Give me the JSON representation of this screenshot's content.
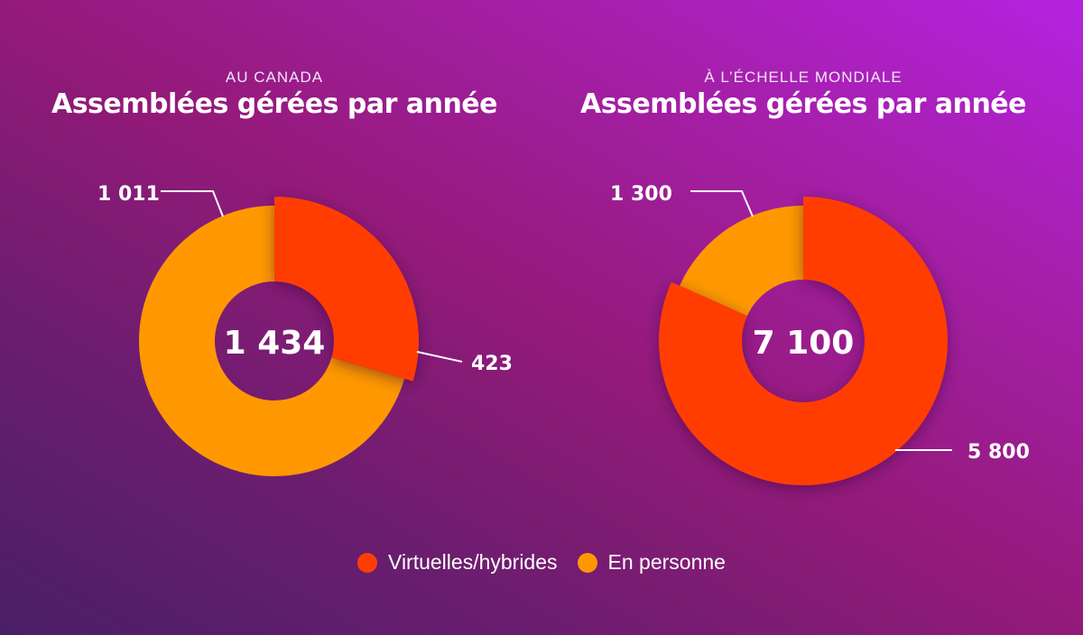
{
  "colors": {
    "virtual": "#ff3d00",
    "in_person": "#ff9800"
  },
  "chart_data": [
    {
      "type": "pie",
      "subtitle": "AU CANADA",
      "title": "Assemblées gérées par année",
      "total_label": "1 434",
      "slices": [
        {
          "name": "Virtuelles/hybrides",
          "value": 423,
          "label": "423"
        },
        {
          "name": "En personne",
          "value": 1011,
          "label": "1 011"
        }
      ]
    },
    {
      "type": "pie",
      "subtitle": "À L’ÉCHELLE MONDIALE",
      "title": "Assemblées gérées par année",
      "total_label": "7 100",
      "slices": [
        {
          "name": "Virtuelles/hybrides",
          "value": 5800,
          "label": "5 800"
        },
        {
          "name": "En personne",
          "value": 1300,
          "label": "1 300"
        }
      ]
    }
  ],
  "legend": [
    {
      "label": "Virtuelles/hybrides",
      "color": "#ff3d00"
    },
    {
      "label": "En personne",
      "color": "#ff9800"
    }
  ]
}
